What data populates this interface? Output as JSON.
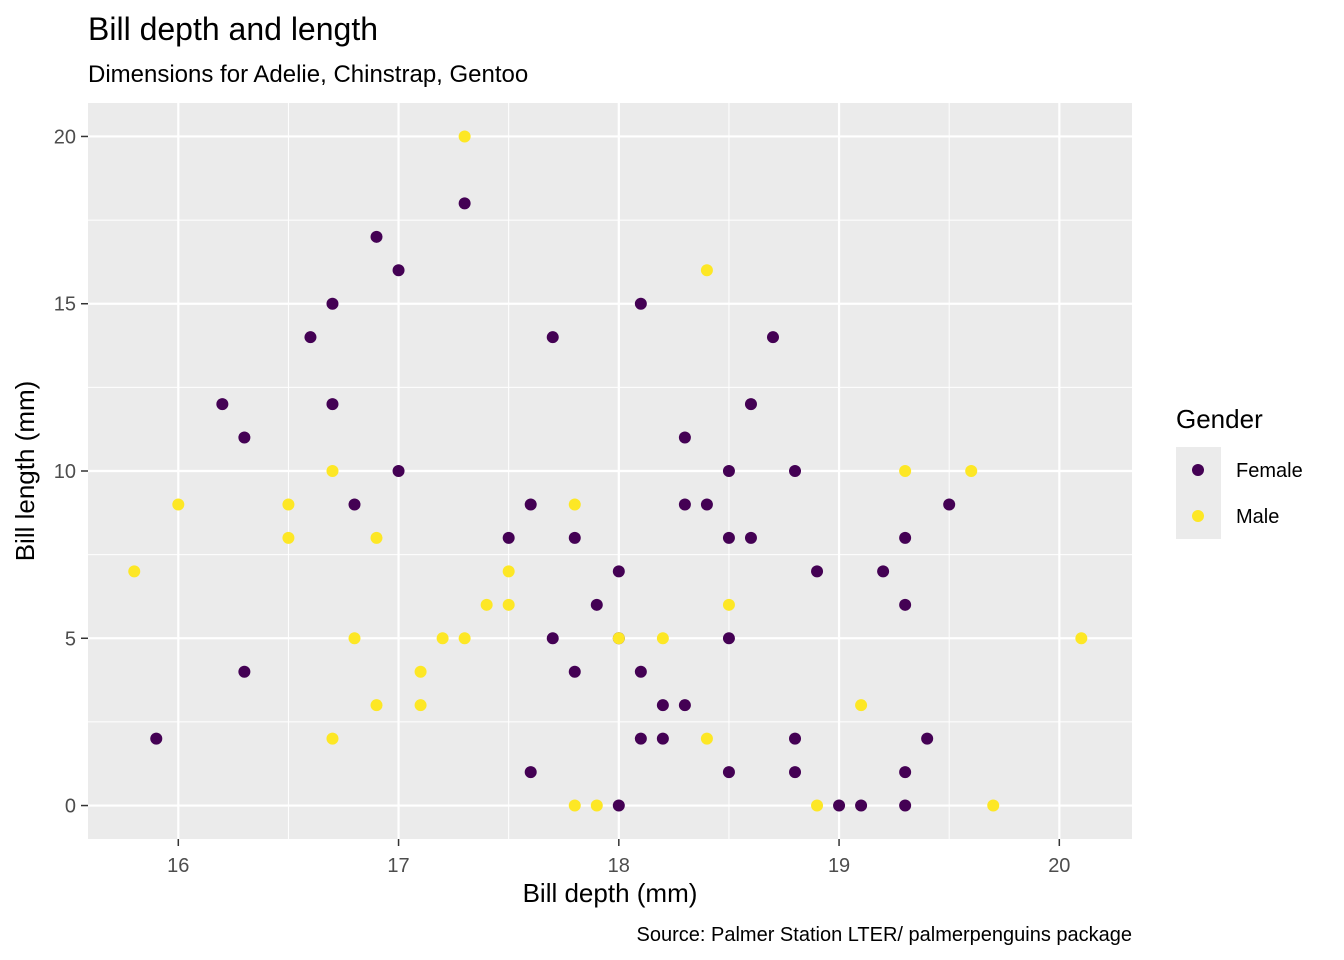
{
  "chart_data": {
    "type": "scatter",
    "title": "Bill depth and length",
    "subtitle": "Dimensions for Adelie, Chinstrap, Gentoo",
    "xlabel": "Bill depth (mm)",
    "ylabel": "Bill length (mm)",
    "caption": "Source: Palmer Station LTER/ palmerpenguins package",
    "xlim": [
      15.59,
      20.33
    ],
    "ylim": [
      -1,
      21
    ],
    "xticks": [
      16,
      17,
      18,
      19,
      20
    ],
    "yticks": [
      0,
      5,
      10,
      15,
      20
    ],
    "grid": true,
    "legend": {
      "title": "Gender",
      "position": "right",
      "entries": [
        "Female",
        "Male"
      ]
    },
    "series": [
      {
        "name": "Female",
        "color": "#440154",
        "points": [
          [
            15.9,
            2
          ],
          [
            16.2,
            12
          ],
          [
            16.3,
            11
          ],
          [
            16.3,
            4
          ],
          [
            16.6,
            14
          ],
          [
            16.7,
            15
          ],
          [
            16.7,
            12
          ],
          [
            16.8,
            9
          ],
          [
            16.9,
            17
          ],
          [
            17.0,
            16
          ],
          [
            17.0,
            10
          ],
          [
            17.3,
            18
          ],
          [
            17.5,
            8
          ],
          [
            17.6,
            9
          ],
          [
            17.6,
            1
          ],
          [
            17.7,
            14
          ],
          [
            17.7,
            5
          ],
          [
            17.8,
            8
          ],
          [
            17.8,
            4
          ],
          [
            17.9,
            6
          ],
          [
            18.0,
            7
          ],
          [
            18.0,
            5
          ],
          [
            18.0,
            0
          ],
          [
            18.1,
            15
          ],
          [
            18.1,
            4
          ],
          [
            18.1,
            2
          ],
          [
            18.2,
            3
          ],
          [
            18.2,
            2
          ],
          [
            18.3,
            11
          ],
          [
            18.3,
            9
          ],
          [
            18.3,
            3
          ],
          [
            18.4,
            9
          ],
          [
            18.5,
            10
          ],
          [
            18.5,
            8
          ],
          [
            18.5,
            5
          ],
          [
            18.5,
            1
          ],
          [
            18.6,
            12
          ],
          [
            18.6,
            8
          ],
          [
            18.7,
            14
          ],
          [
            18.8,
            10
          ],
          [
            18.8,
            2
          ],
          [
            18.8,
            1
          ],
          [
            18.9,
            7
          ],
          [
            19.0,
            0
          ],
          [
            19.1,
            0
          ],
          [
            19.2,
            7
          ],
          [
            19.3,
            8
          ],
          [
            19.3,
            6
          ],
          [
            19.3,
            1
          ],
          [
            19.3,
            0
          ],
          [
            19.4,
            2
          ],
          [
            19.5,
            9
          ]
        ]
      },
      {
        "name": "Male",
        "color": "#FDE725",
        "points": [
          [
            15.8,
            7
          ],
          [
            16.0,
            9
          ],
          [
            16.5,
            9
          ],
          [
            16.5,
            8
          ],
          [
            16.7,
            10
          ],
          [
            16.7,
            2
          ],
          [
            16.8,
            5
          ],
          [
            16.9,
            8
          ],
          [
            16.9,
            3
          ],
          [
            17.1,
            4
          ],
          [
            17.1,
            3
          ],
          [
            17.2,
            5
          ],
          [
            17.3,
            20
          ],
          [
            17.3,
            5
          ],
          [
            17.4,
            6
          ],
          [
            17.5,
            7
          ],
          [
            17.5,
            6
          ],
          [
            17.8,
            9
          ],
          [
            17.8,
            0
          ],
          [
            17.9,
            0
          ],
          [
            18.0,
            5
          ],
          [
            18.2,
            5
          ],
          [
            18.4,
            16
          ],
          [
            18.4,
            2
          ],
          [
            18.5,
            6
          ],
          [
            18.9,
            0
          ],
          [
            19.1,
            3
          ],
          [
            19.3,
            10
          ],
          [
            19.6,
            10
          ],
          [
            19.7,
            0
          ],
          [
            20.1,
            5
          ]
        ]
      }
    ]
  }
}
